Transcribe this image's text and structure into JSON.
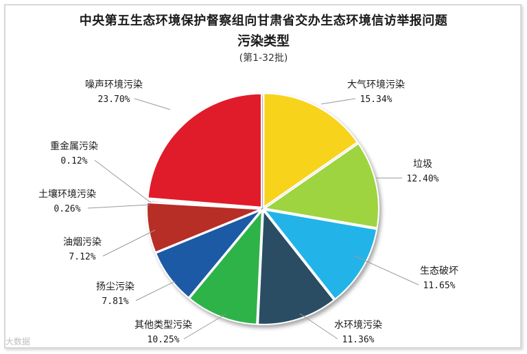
{
  "chart_data": {
    "type": "pie",
    "title": "中央第五生态环境保护督察组向甘肃省交办生态环境信访举报问题",
    "subtitle": "污染类型",
    "period": "(第1-32批)",
    "slices": [
      {
        "label": "大气环境污染",
        "value_text": "15.34%",
        "value": 15.34,
        "color": "#f7d31a"
      },
      {
        "label": "垃圾",
        "value_text": "12.40%",
        "value": 12.4,
        "color": "#9ed43f"
      },
      {
        "label": "生态破坏",
        "value_text": "11.65%",
        "value": 11.65,
        "color": "#21b4e8"
      },
      {
        "label": "水环境污染",
        "value_text": "11.36%",
        "value": 11.36,
        "color": "#2b4d63"
      },
      {
        "label": "其他类型污染",
        "value_text": "10.25%",
        "value": 10.25,
        "color": "#2fb34a"
      },
      {
        "label": "扬尘污染",
        "value_text": "7.81%",
        "value": 7.81,
        "color": "#1f5aa6"
      },
      {
        "label": "油烟污染",
        "value_text": "7.12%",
        "value": 7.12,
        "color": "#b72f26"
      },
      {
        "label": "土壤环境污染",
        "value_text": "0.26%",
        "value": 0.26,
        "color": "#c0c0c0"
      },
      {
        "label": "重金属污染",
        "value_text": "0.12%",
        "value": 0.12,
        "color": "#e07a2a"
      },
      {
        "label": "噪声环境污染",
        "value_text": "23.70%",
        "value": 23.7,
        "color": "#e01d2b"
      }
    ]
  },
  "watermark": "大数据"
}
